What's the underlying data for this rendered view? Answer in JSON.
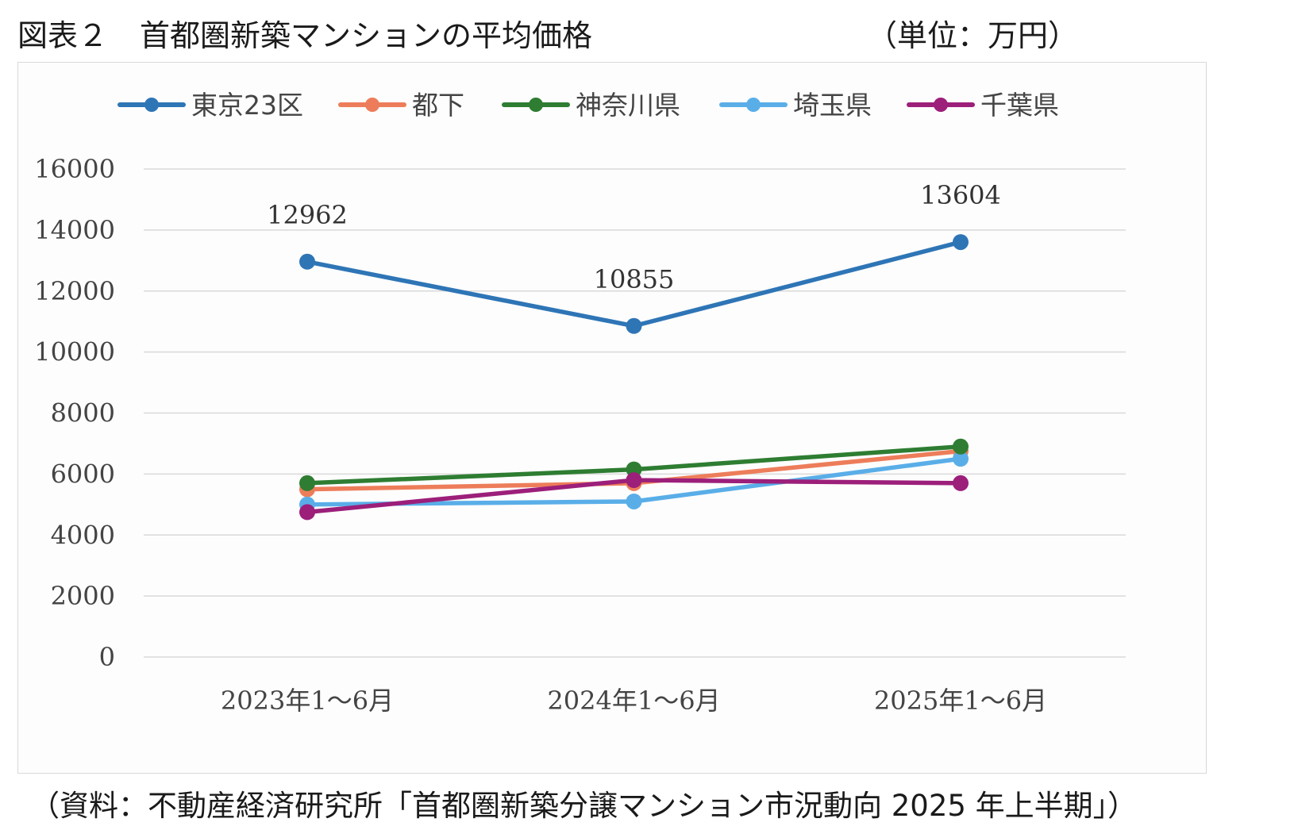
{
  "header": {
    "title_prefix": "図表２",
    "title": "首都圏新築マンションの平均価格",
    "unit": "（単位：万円）"
  },
  "footer": {
    "source": "（資料：不動産経済研究所「首都圏新築分譲マンション市況動向 2025 年上半期」）"
  },
  "chart_data": {
    "type": "line",
    "title": "",
    "xlabel": "",
    "ylabel": "",
    "categories": [
      "2023年1～6月",
      "2024年1～6月",
      "2025年1～6月"
    ],
    "ylim": [
      0,
      16000
    ],
    "yticks": [
      0,
      2000,
      4000,
      6000,
      8000,
      10000,
      12000,
      14000,
      16000
    ],
    "grid": true,
    "legend_position": "top",
    "series": [
      {
        "name": "東京23区",
        "color": "#2e75b6",
        "values": [
          12962,
          10855,
          13604
        ],
        "data_labels": [
          "12962",
          "10855",
          "13604"
        ]
      },
      {
        "name": "都下",
        "color": "#ed7d5a",
        "values": [
          5500,
          5700,
          6750
        ],
        "data_labels": []
      },
      {
        "name": "神奈川県",
        "color": "#2e7d32",
        "values": [
          5700,
          6150,
          6900
        ],
        "data_labels": []
      },
      {
        "name": "埼玉県",
        "color": "#5aaee8",
        "values": [
          5000,
          5100,
          6500
        ],
        "data_labels": []
      },
      {
        "name": "千葉県",
        "color": "#9c1f7a",
        "values": [
          4750,
          5800,
          5700
        ],
        "data_labels": []
      }
    ]
  }
}
